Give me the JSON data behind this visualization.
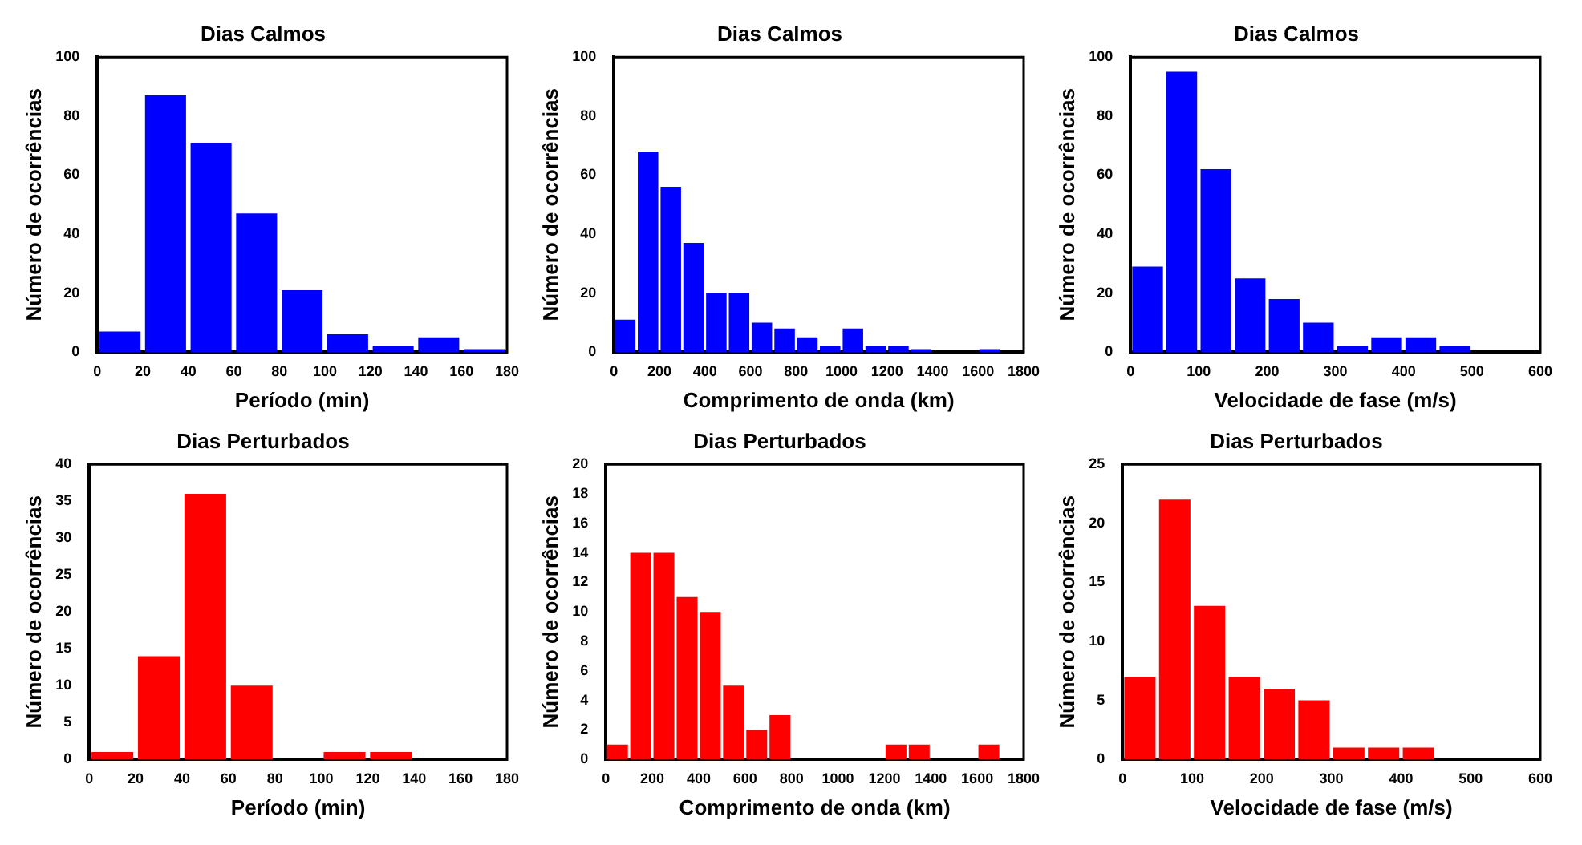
{
  "chart_data": [
    {
      "type": "histogram",
      "title": "Dias Calmos",
      "xlabel": "Período (min)",
      "ylabel": "Número de ocorrências",
      "color": "#0000ff",
      "bins": [
        0,
        20,
        40,
        60,
        80,
        100,
        120,
        140,
        160,
        180
      ],
      "values": [
        7,
        87,
        71,
        47,
        21,
        6,
        2,
        5,
        1
      ],
      "xlim": [
        0,
        180
      ],
      "xticks": [
        0,
        20,
        40,
        60,
        80,
        100,
        120,
        140,
        160,
        180
      ],
      "ylim": [
        0,
        100
      ],
      "yticks": [
        0,
        20,
        40,
        60,
        80,
        100
      ],
      "grid": false
    },
    {
      "type": "histogram",
      "title": "Dias Calmos",
      "xlabel": "Comprimento de onda (km)",
      "ylabel": "Número de ocorrências",
      "color": "#0000ff",
      "bins": [
        0,
        100,
        200,
        300,
        400,
        500,
        600,
        700,
        800,
        900,
        1000,
        1100,
        1200,
        1300,
        1400,
        1500,
        1600,
        1700
      ],
      "values": [
        11,
        68,
        56,
        37,
        20,
        20,
        10,
        8,
        5,
        2,
        8,
        2,
        2,
        1,
        0,
        0,
        1
      ],
      "xlim": [
        0,
        1800
      ],
      "xticks": [
        0,
        200,
        400,
        600,
        800,
        1000,
        1200,
        1400,
        1600,
        1800
      ],
      "ylim": [
        0,
        100
      ],
      "yticks": [
        0,
        20,
        40,
        60,
        80,
        100
      ],
      "grid": false
    },
    {
      "type": "histogram",
      "title": "Dias Calmos",
      "xlabel": "Velocidade de fase (m/s)",
      "ylabel": "Número de ocorrências",
      "color": "#0000ff",
      "bins": [
        0,
        50,
        100,
        150,
        200,
        250,
        300,
        350,
        400,
        450,
        500
      ],
      "values": [
        29,
        95,
        62,
        25,
        18,
        10,
        2,
        5,
        5,
        2
      ],
      "xlim": [
        0,
        600
      ],
      "xticks": [
        0,
        100,
        200,
        300,
        400,
        500,
        600
      ],
      "ylim": [
        0,
        100
      ],
      "yticks": [
        0,
        20,
        40,
        60,
        80,
        100
      ],
      "grid": false
    },
    {
      "type": "histogram",
      "title": "Dias Perturbados",
      "xlabel": "Período (min)",
      "ylabel": "Número de ocorrências",
      "color": "#ff0000",
      "bins": [
        0,
        20,
        40,
        60,
        80,
        100,
        120,
        140
      ],
      "values": [
        1,
        14,
        36,
        10,
        0,
        1,
        1
      ],
      "xlim": [
        0,
        180
      ],
      "xticks": [
        0,
        20,
        40,
        60,
        80,
        100,
        120,
        140,
        160,
        180
      ],
      "ylim": [
        0,
        40
      ],
      "yticks": [
        0,
        5,
        10,
        15,
        20,
        25,
        30,
        35,
        40
      ],
      "grid": false
    },
    {
      "type": "histogram",
      "title": "Dias Perturbados",
      "xlabel": "Comprimento de onda (km)",
      "ylabel": "Número de ocorrências",
      "color": "#ff0000",
      "bins": [
        0,
        100,
        200,
        300,
        400,
        500,
        600,
        700,
        800,
        900,
        1000,
        1100,
        1200,
        1300,
        1400,
        1500,
        1600,
        1700
      ],
      "values": [
        1,
        14,
        14,
        11,
        10,
        5,
        2,
        3,
        0,
        0,
        0,
        0,
        1,
        1,
        0,
        0,
        1
      ],
      "xlim": [
        0,
        1800
      ],
      "xticks": [
        0,
        200,
        400,
        600,
        800,
        1000,
        1200,
        1400,
        1600,
        1800
      ],
      "ylim": [
        0,
        20
      ],
      "yticks": [
        0,
        2,
        4,
        6,
        8,
        10,
        12,
        14,
        16,
        18,
        20
      ],
      "grid": false
    },
    {
      "type": "histogram",
      "title": "Dias Perturbados",
      "xlabel": "Velocidade de fase (m/s)",
      "ylabel": "Número de ocorrências",
      "color": "#ff0000",
      "bins": [
        0,
        50,
        100,
        150,
        200,
        250,
        300,
        350,
        400,
        450
      ],
      "values": [
        7,
        22,
        13,
        7,
        6,
        5,
        1,
        1,
        1
      ],
      "xlim": [
        0,
        600
      ],
      "xticks": [
        0,
        100,
        200,
        300,
        400,
        500,
        600
      ],
      "ylim": [
        0,
        25
      ],
      "yticks": [
        0,
        5,
        10,
        15,
        20,
        25
      ],
      "grid": false
    }
  ]
}
